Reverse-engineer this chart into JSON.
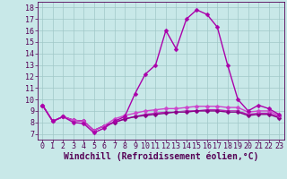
{
  "xlabel": "Windchill (Refroidissement éolien,°C)",
  "xlim": [
    -0.5,
    23.5
  ],
  "ylim": [
    6.5,
    18.5
  ],
  "xticks": [
    0,
    1,
    2,
    3,
    4,
    5,
    6,
    7,
    8,
    9,
    10,
    11,
    12,
    13,
    14,
    15,
    16,
    17,
    18,
    19,
    20,
    21,
    22,
    23
  ],
  "yticks": [
    7,
    8,
    9,
    10,
    11,
    12,
    13,
    14,
    15,
    16,
    17,
    18
  ],
  "bg_color": "#c8e8e8",
  "grid_color": "#a0c8c8",
  "line_colors": [
    "#aa00aa",
    "#cc44cc",
    "#880088",
    "#bb22bb"
  ],
  "series": [
    [
      9.5,
      8.1,
      8.5,
      8.0,
      7.9,
      7.1,
      7.5,
      8.1,
      8.5,
      10.5,
      12.2,
      13.0,
      16.0,
      14.4,
      17.0,
      17.8,
      17.4,
      16.3,
      13.0,
      10.0,
      9.0,
      9.5,
      9.2,
      8.7
    ],
    [
      9.5,
      8.1,
      8.5,
      8.2,
      8.1,
      7.3,
      7.7,
      8.3,
      8.6,
      8.8,
      9.0,
      9.1,
      9.2,
      9.2,
      9.3,
      9.4,
      9.4,
      9.4,
      9.3,
      9.3,
      8.9,
      9.0,
      9.0,
      8.6
    ],
    [
      9.5,
      8.1,
      8.5,
      8.2,
      8.1,
      7.3,
      7.7,
      8.0,
      8.3,
      8.5,
      8.6,
      8.7,
      8.8,
      8.9,
      8.9,
      9.0,
      9.0,
      9.0,
      8.9,
      8.9,
      8.6,
      8.7,
      8.7,
      8.4
    ],
    [
      9.5,
      8.1,
      8.5,
      8.2,
      8.1,
      7.3,
      7.7,
      8.0,
      8.3,
      8.5,
      8.7,
      8.8,
      8.9,
      8.9,
      9.0,
      9.0,
      9.1,
      9.1,
      9.0,
      9.0,
      8.7,
      8.8,
      8.8,
      8.5
    ]
  ],
  "marker": "D",
  "markersize": 2.5,
  "linewidth": 1.0,
  "tick_fontsize": 6,
  "xlabel_fontsize": 7,
  "font_color": "#550055"
}
